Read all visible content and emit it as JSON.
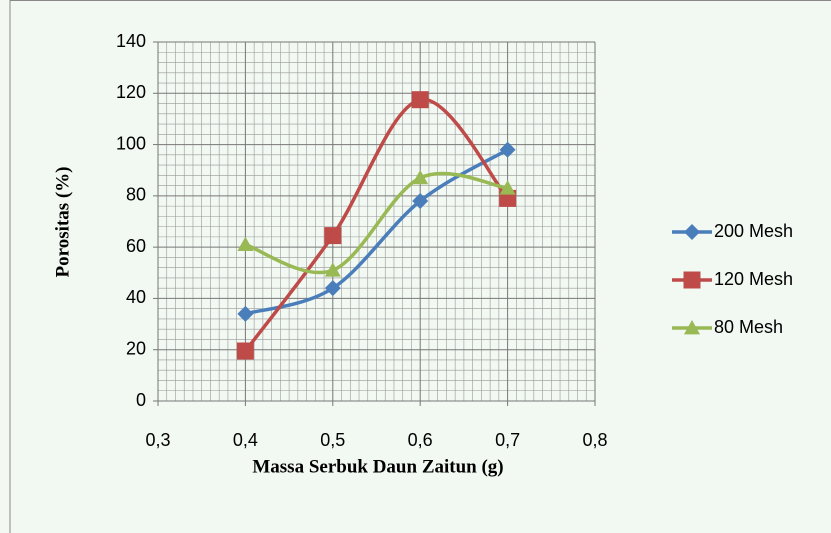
{
  "chart_data": {
    "type": "line",
    "x_label": "Massa Serbuk Daun Zaitun (g)",
    "y_label": "Porositas (%)",
    "x": [
      0.4,
      0.5,
      0.6,
      0.7
    ],
    "series": [
      {
        "name": "200 Mesh",
        "color": "#4a7ebb",
        "marker": "diamond",
        "values": [
          34,
          44,
          78,
          98
        ]
      },
      {
        "name": "120 Mesh",
        "color": "#be4b48",
        "marker": "square",
        "values": [
          19.5,
          64.5,
          117.5,
          79
        ]
      },
      {
        "name": "80 Mesh",
        "color": "#98b954",
        "marker": "triangle",
        "values": [
          61,
          51,
          87,
          83
        ]
      }
    ],
    "xlim": [
      0.3,
      0.8
    ],
    "xticks": [
      {
        "value": 0.3,
        "label": "0,3"
      },
      {
        "value": 0.4,
        "label": "0,4"
      },
      {
        "value": 0.5,
        "label": "0,5"
      },
      {
        "value": 0.6,
        "label": "0,6"
      },
      {
        "value": 0.7,
        "label": "0,7"
      },
      {
        "value": 0.8,
        "label": "0,8"
      }
    ],
    "ylim": [
      0,
      140
    ],
    "yticks": [
      0,
      20,
      40,
      60,
      80,
      100,
      120,
      140
    ],
    "grid": true,
    "smooth": true,
    "legend": "right"
  }
}
